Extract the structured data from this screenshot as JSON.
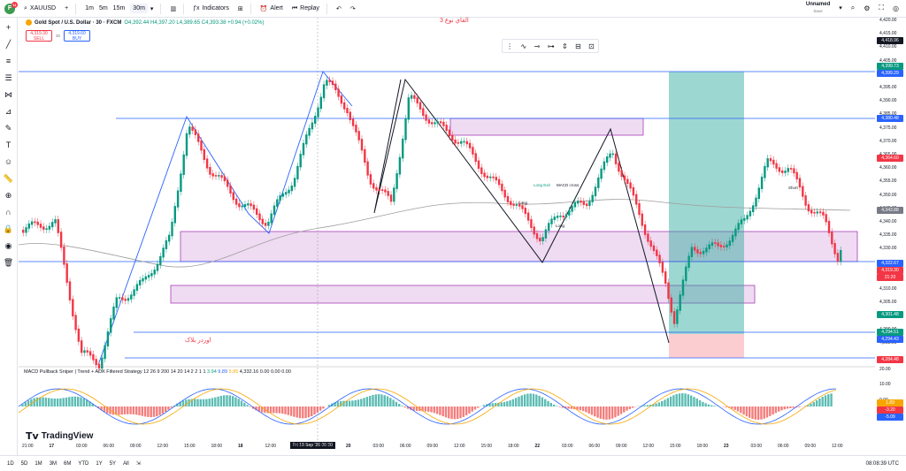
{
  "topbar": {
    "logo_letter": "F",
    "notif_count": "11",
    "symbol": "XAUUSD",
    "timeframes": [
      "1m",
      "5m",
      "15m",
      "30m"
    ],
    "indicators_label": "Indicators",
    "alert_label": "Alert",
    "replay_label": "Replay",
    "layout_name": "Unnamed",
    "save_label": "Save"
  },
  "legend": {
    "title": "Gold Spot / U.S. Dollar · 30 · FXCM",
    "ohlc": "O4,392.44 H4,397.20 L4,389.65 C4,393.38 +0.94 (+0.02%)"
  },
  "trade": {
    "sell_price": "4,319.30",
    "sell_label": "SELL",
    "spread": "30",
    "buy_price": "4,319.60",
    "buy_label": "BUY"
  },
  "annotations": {
    "arabic_top": "القاي نوع 3",
    "arabic_bottom": "اوردر بلاک",
    "long_exit": "Long Exit",
    "macd_cross": "MACD cross",
    "long": "Long",
    "short": "Short"
  },
  "price_axis": {
    "ticks": [
      "4,420.00",
      "4,415.00",
      "4,410.00",
      "4,405.00",
      "4,400.00",
      "4,395.00",
      "4,390.00",
      "4,385.00",
      "4,375.00",
      "4,370.00",
      "4,365.00",
      "4,360.00",
      "4,355.00",
      "4,350.00",
      "4,345.00",
      "4,340.00",
      "4,335.00",
      "4,330.00",
      "4,325.00",
      "4,315.00",
      "4,310.00",
      "4,305.00",
      "4,300.00",
      "4,290.00",
      "4,285.00"
    ],
    "badges": [
      {
        "text": "4,418.96",
        "color": "#131722"
      },
      {
        "text": "4,399.73",
        "color": "#089981"
      },
      {
        "text": "4,399.29",
        "color": "#2962ff"
      },
      {
        "text": "4,380.48",
        "color": "#2962ff"
      },
      {
        "text": "4,364.60",
        "color": "#f23645"
      },
      {
        "text": "4,343.88",
        "color": "#787b86"
      },
      {
        "text": "4,322.67",
        "color": "#2962ff"
      },
      {
        "text": "4,319.30",
        "color": "#f23645"
      },
      {
        "text": "21:20",
        "color": "#f23645"
      },
      {
        "text": "4,301.48",
        "color": "#089981"
      },
      {
        "text": "4,294.51",
        "color": "#089981"
      },
      {
        "text": "4,294.43",
        "color": "#2962ff"
      },
      {
        "text": "4,284.48",
        "color": "#f23645"
      }
    ],
    "osc_ticks": [
      "20.00",
      "10.00",
      "0.00",
      "-10.00"
    ],
    "osc_badges": [
      {
        "text": "1.89",
        "color": "#f7a600"
      },
      {
        "text": "-3.20",
        "color": "#f23645"
      },
      {
        "text": "-5.09",
        "color": "#2962ff"
      }
    ]
  },
  "indicator": {
    "name": "MACD Pullback Sniper | Trend + ADX Filtered Strategy 12 26 9 200 14 20 14 2 2 1 1",
    "v1": "3.94",
    "v2": "9.89",
    "v3": "5.95",
    "rest": "4,332.16 0.00 0.00 0.00"
  },
  "time_axis": {
    "labels": [
      {
        "t": "21:00",
        "b": false
      },
      {
        "t": "17",
        "b": true
      },
      {
        "t": "03:00",
        "b": false
      },
      {
        "t": "06:00",
        "b": false
      },
      {
        "t": "09:00",
        "b": false
      },
      {
        "t": "12:00",
        "b": false
      },
      {
        "t": "15:00",
        "b": false
      },
      {
        "t": "18:00",
        "b": false
      },
      {
        "t": "18",
        "b": true
      },
      {
        "t": "12:00",
        "b": false
      },
      {
        "t": "15:00",
        "b": false
      },
      {
        "t": "18:00",
        "b": false
      },
      {
        "t": "20",
        "b": true
      },
      {
        "t": "03:00",
        "b": false
      },
      {
        "t": "06:00",
        "b": false
      },
      {
        "t": "09:00",
        "b": false
      },
      {
        "t": "12:00",
        "b": false
      },
      {
        "t": "15:00",
        "b": false
      },
      {
        "t": "18:00",
        "b": false
      },
      {
        "t": "22",
        "b": true
      },
      {
        "t": "03:00",
        "b": false
      },
      {
        "t": "06:00",
        "b": false
      },
      {
        "t": "09:00",
        "b": false
      },
      {
        "t": "12:00",
        "b": false
      },
      {
        "t": "15:00",
        "b": false
      },
      {
        "t": "18:00",
        "b": false
      },
      {
        "t": "23",
        "b": true
      },
      {
        "t": "03:00",
        "b": false
      },
      {
        "t": "06:00",
        "b": false
      },
      {
        "t": "09:00",
        "b": false
      },
      {
        "t": "12:00",
        "b": false
      }
    ],
    "crosshair": "Fri 18 Sep '26   06:30"
  },
  "bottombar": {
    "ranges": [
      "1D",
      "5D",
      "1M",
      "3M",
      "6M",
      "YTD",
      "1Y",
      "5Y",
      "All"
    ],
    "clock": "08:08:39 UTC"
  },
  "brand": "TradingView"
}
